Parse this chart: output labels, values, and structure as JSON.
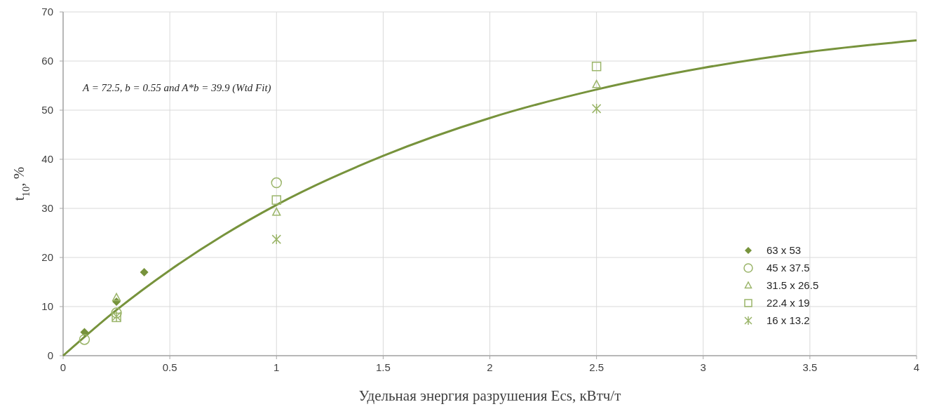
{
  "chart_data": {
    "type": "scatter",
    "xlabel": "Удельная энергия разрушения Ecs, кВтч/т",
    "ylabel": "t$_{10}$, %",
    "xlim": [
      0,
      4
    ],
    "xticks": [
      0,
      0.5,
      1,
      1.5,
      2,
      2.5,
      3,
      3.5,
      4
    ],
    "ylim": [
      0,
      70
    ],
    "yticks": [
      0,
      10,
      20,
      30,
      40,
      50,
      60,
      70
    ],
    "grid": true,
    "legend": "bottom right",
    "annotations": [
      "A = 72.5, b = 0.55 and A*b = 39.9 (Wtd Fit)"
    ],
    "series": [
      {
        "type": "line",
        "color": "#77933c",
        "marker": "none",
        "x": [
          0,
          0.25,
          0.5,
          0.75,
          1,
          1.5,
          2,
          2.5,
          3,
          3.5,
          4
        ],
        "values": [
          0,
          9.3,
          17.4,
          24.5,
          30.7,
          40.7,
          48.4,
          54.2,
          58.6,
          61.9,
          64.2
        ]
      },
      {
        "name": "63 x 53",
        "color": "#77933c",
        "marker": "diamond",
        "x": [
          0.1,
          0.25,
          0.38
        ],
        "values": [
          4.8,
          11,
          17
        ]
      },
      {
        "name": "45 x 37.5",
        "color": "#9bb56a",
        "marker": "circle",
        "x": [
          0.1,
          0.25,
          1
        ],
        "values": [
          3.3,
          8.7,
          35.2
        ]
      },
      {
        "name": "31.5 x 26.5",
        "color": "#9bb56a",
        "marker": "triangle",
        "x": [
          0.25,
          1,
          2.5
        ],
        "values": [
          11.8,
          29.2,
          55.2
        ]
      },
      {
        "name": "22.4 x 19",
        "color": "#9bb56a",
        "marker": "square",
        "x": [
          0.25,
          1,
          2.5
        ],
        "values": [
          7.8,
          31.7,
          58.9
        ]
      },
      {
        "name": "16 x 13.2",
        "color": "#9bb56a",
        "marker": "cross",
        "x": [
          0.25,
          1,
          2.5
        ],
        "values": [
          8,
          23.7,
          50.3
        ]
      }
    ]
  }
}
